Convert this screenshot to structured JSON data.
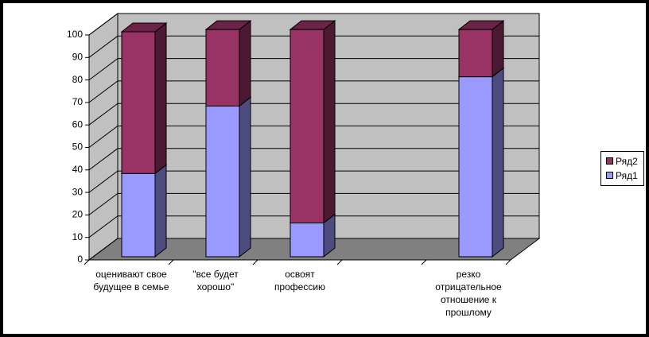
{
  "chart_data": {
    "type": "bar3d_stacked",
    "categories": [
      "оценивают свое будущее в семье",
      "\"все будет хорошо\"",
      "освоят профессию",
      null,
      "резко отрицательное отношение к прошлому"
    ],
    "series": [
      {
        "name": "Ряд1",
        "color": "#9999ff",
        "values": [
          37,
          67,
          15,
          null,
          80
        ]
      },
      {
        "name": "Ряд2",
        "color": "#993366",
        "values": [
          63,
          34,
          86,
          null,
          21
        ]
      }
    ],
    "ylim": [
      0,
      100
    ],
    "yticks": [
      0,
      10,
      20,
      30,
      40,
      50,
      60,
      70,
      80,
      90,
      100
    ],
    "grid": true,
    "legend": "right"
  }
}
